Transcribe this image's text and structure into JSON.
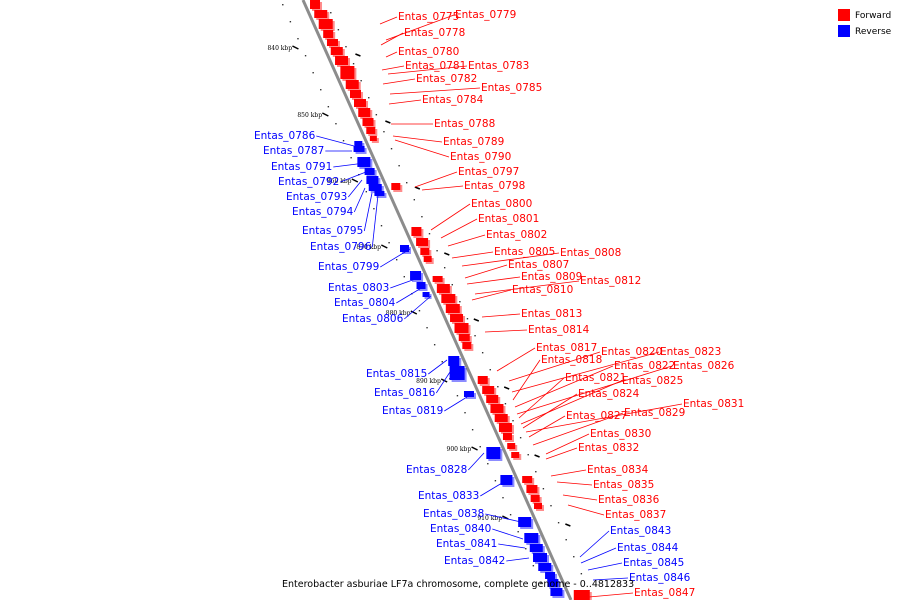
{
  "colors": {
    "forward": "#ff0000",
    "reverse": "#0000ff",
    "backbone": "#8c8c8c"
  },
  "legend": {
    "forward_label": "Forward",
    "reverse_label": "Reverse"
  },
  "caption": "Enterobacter asburiae LF7a chromosome, complete genome - 0..4812833",
  "ticks": [
    "840 kbp",
    "850 kbp",
    "860 kbp",
    "870 kbp",
    "880 kbp",
    "890 kbp",
    "900 kbp",
    "910 kbp"
  ],
  "forward_genes": [
    "Entas_0775",
    "Entas_0779",
    "Entas_0778",
    "Entas_0780",
    "Entas_0781",
    "Entas_0783",
    "Entas_0782",
    "Entas_0785",
    "Entas_0784",
    "Entas_0788",
    "Entas_0789",
    "Entas_0790",
    "Entas_0797",
    "Entas_0798",
    "Entas_0800",
    "Entas_0801",
    "Entas_0802",
    "Entas_0805",
    "Entas_0808",
    "Entas_0807",
    "Entas_0809",
    "Entas_0812",
    "Entas_0810",
    "Entas_0813",
    "Entas_0814",
    "Entas_0817",
    "Entas_0820",
    "Entas_0823",
    "Entas_0818",
    "Entas_0822",
    "Entas_0826",
    "Entas_0821",
    "Entas_0825",
    "Entas_0824",
    "Entas_0831",
    "Entas_0827",
    "Entas_0829",
    "Entas_0830",
    "Entas_0832",
    "Entas_0834",
    "Entas_0835",
    "Entas_0836",
    "Entas_0837",
    "Entas_0847"
  ],
  "reverse_genes": [
    "Entas_0786",
    "Entas_0787",
    "Entas_0791",
    "Entas_0792",
    "Entas_0793",
    "Entas_0794",
    "Entas_0795",
    "Entas_0796",
    "Entas_0799",
    "Entas_0803",
    "Entas_0804",
    "Entas_0806",
    "Entas_0815",
    "Entas_0816",
    "Entas_0819",
    "Entas_0828",
    "Entas_0833",
    "Entas_0838",
    "Entas_0840",
    "Entas_0841",
    "Entas_0842",
    "Entas_0843",
    "Entas_0844",
    "Entas_0845",
    "Entas_0846"
  ]
}
